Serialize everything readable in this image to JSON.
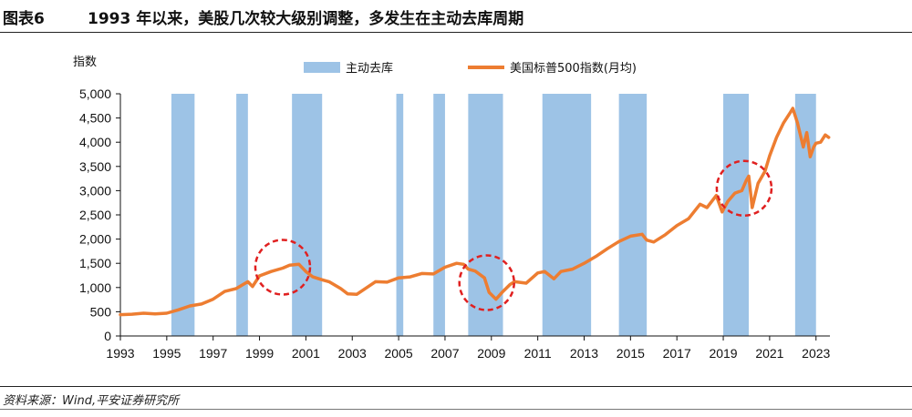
{
  "figure": {
    "label": "图表6",
    "title": "1993 年以来，美股几次较大级别调整，多发生在主动去库周期",
    "source": "资料来源：Wind,平安证券研究所"
  },
  "colors": {
    "line": "#ED7D31",
    "shade": "#9DC3E6",
    "circle": "#E02020",
    "axis": "#111111"
  },
  "chart_data": {
    "type": "line",
    "ylabel": "指数",
    "ylim": [
      0,
      5000
    ],
    "yticks": [
      "0",
      "500",
      "1,000",
      "1,500",
      "2,000",
      "2,500",
      "3,000",
      "3,500",
      "4,000",
      "4,500",
      "5,000"
    ],
    "xlim": [
      1993.0,
      2023.6
    ],
    "xticks": [
      "1993",
      "1995",
      "1997",
      "1999",
      "2001",
      "2003",
      "2005",
      "2007",
      "2009",
      "2011",
      "2013",
      "2015",
      "2017",
      "2019",
      "2021",
      "2023"
    ],
    "legend": [
      {
        "name": "主动去库",
        "kind": "shade"
      },
      {
        "name": "美国标普500指数(月均)",
        "kind": "line"
      }
    ],
    "destocking_periods": [
      [
        1995.2,
        1996.2
      ],
      [
        1998.0,
        1998.5
      ],
      [
        2000.4,
        2001.7
      ],
      [
        2004.9,
        2005.2
      ],
      [
        2006.5,
        2007.0
      ],
      [
        2008.0,
        2009.5
      ],
      [
        2011.2,
        2013.3
      ],
      [
        2014.5,
        2015.7
      ],
      [
        2019.0,
        2020.1
      ],
      [
        2022.1,
        2023.0
      ]
    ],
    "highlight_circles": [
      {
        "x": 2000.0,
        "y": 1420
      },
      {
        "x": 2008.8,
        "y": 1100
      },
      {
        "x": 2019.9,
        "y": 3050
      }
    ],
    "series": [
      {
        "name": "美国标普500指数(月均)",
        "x": [
          1993.0,
          1993.5,
          1994.0,
          1994.5,
          1995.0,
          1995.5,
          1996.0,
          1996.5,
          1997.0,
          1997.5,
          1998.0,
          1998.5,
          1998.7,
          1999.0,
          1999.5,
          2000.0,
          2000.3,
          2000.7,
          2001.0,
          2001.3,
          2001.7,
          2002.0,
          2002.5,
          2002.8,
          2003.2,
          2003.6,
          2004.0,
          2004.5,
          2005.0,
          2005.5,
          2006.0,
          2006.5,
          2007.0,
          2007.5,
          2007.8,
          2008.0,
          2008.3,
          2008.7,
          2008.9,
          2009.2,
          2009.5,
          2009.8,
          2010.0,
          2010.5,
          2011.0,
          2011.3,
          2011.7,
          2012.0,
          2012.5,
          2013.0,
          2013.5,
          2014.0,
          2014.5,
          2015.0,
          2015.5,
          2015.7,
          2016.0,
          2016.5,
          2017.0,
          2017.5,
          2018.0,
          2018.3,
          2018.7,
          2018.95,
          2019.2,
          2019.5,
          2019.8,
          2020.0,
          2020.1,
          2020.25,
          2020.5,
          2020.8,
          2021.0,
          2021.3,
          2021.6,
          2021.9,
          2022.0,
          2022.2,
          2022.45,
          2022.6,
          2022.75,
          2022.9,
          2023.0,
          2023.2,
          2023.4,
          2023.55
        ],
        "values": [
          440,
          450,
          470,
          455,
          470,
          540,
          620,
          660,
          760,
          920,
          980,
          1120,
          1020,
          1240,
          1330,
          1400,
          1460,
          1480,
          1330,
          1220,
          1160,
          1120,
          980,
          870,
          860,
          990,
          1120,
          1110,
          1200,
          1220,
          1290,
          1280,
          1420,
          1500,
          1480,
          1380,
          1340,
          1200,
          900,
          760,
          920,
          1060,
          1120,
          1090,
          1300,
          1330,
          1180,
          1330,
          1380,
          1500,
          1640,
          1800,
          1950,
          2060,
          2100,
          1980,
          1940,
          2090,
          2280,
          2420,
          2720,
          2650,
          2900,
          2560,
          2780,
          2950,
          3000,
          3220,
          3300,
          2650,
          3150,
          3400,
          3720,
          4100,
          4400,
          4620,
          4700,
          4400,
          3900,
          4200,
          3700,
          3900,
          3980,
          4000,
          4150,
          4100
        ]
      }
    ]
  }
}
